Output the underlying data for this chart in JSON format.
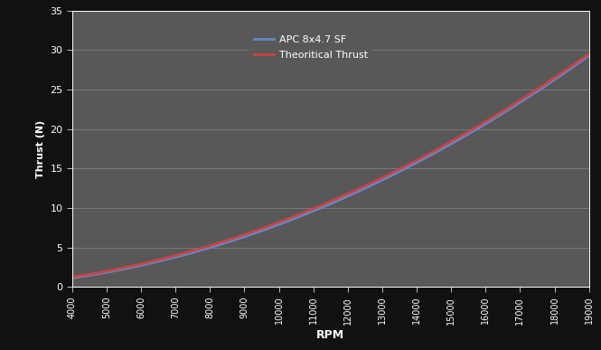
{
  "rpm": [
    4000,
    5000,
    6000,
    7000,
    8000,
    9000,
    10000,
    11000,
    12000,
    13000,
    14000,
    15000,
    16000,
    17000,
    18000,
    19000
  ],
  "apc_thrust": [
    1.2,
    1.9,
    2.7,
    3.7,
    4.89,
    6.2,
    7.9,
    9.8,
    11.9,
    14.2,
    15.0,
    17.5,
    20.5,
    24.0,
    26.5,
    29.0
  ],
  "theoretical_thrust": [
    1.286360754,
    2.009938678,
    2.894311696,
    3.939479809,
    5.145443015,
    6.512,
    8.1,
    10.05,
    12.15,
    14.45,
    15.3,
    17.8,
    20.8,
    24.3,
    26.7,
    29.2
  ],
  "apc_color": "#6688cc",
  "theoretical_color": "#cc4444",
  "bg_color": "#111111",
  "plot_bg_color": "#585858",
  "grid_color": "#888888",
  "text_color": "#ffffff",
  "xlabel": "RPM",
  "ylabel": "Thrust (N)",
  "legend_apc": "APC 8x4.7 SF",
  "legend_theoretical": "Theoritical Thrust",
  "xlim": [
    4000,
    19000
  ],
  "ylim": [
    0,
    35
  ],
  "xticks": [
    4000,
    5000,
    6000,
    7000,
    8000,
    9000,
    10000,
    11000,
    12000,
    13000,
    14000,
    15000,
    16000,
    17000,
    18000,
    19000
  ],
  "yticks": [
    0,
    5,
    10,
    15,
    20,
    25,
    30,
    35
  ],
  "line_width": 2.0
}
